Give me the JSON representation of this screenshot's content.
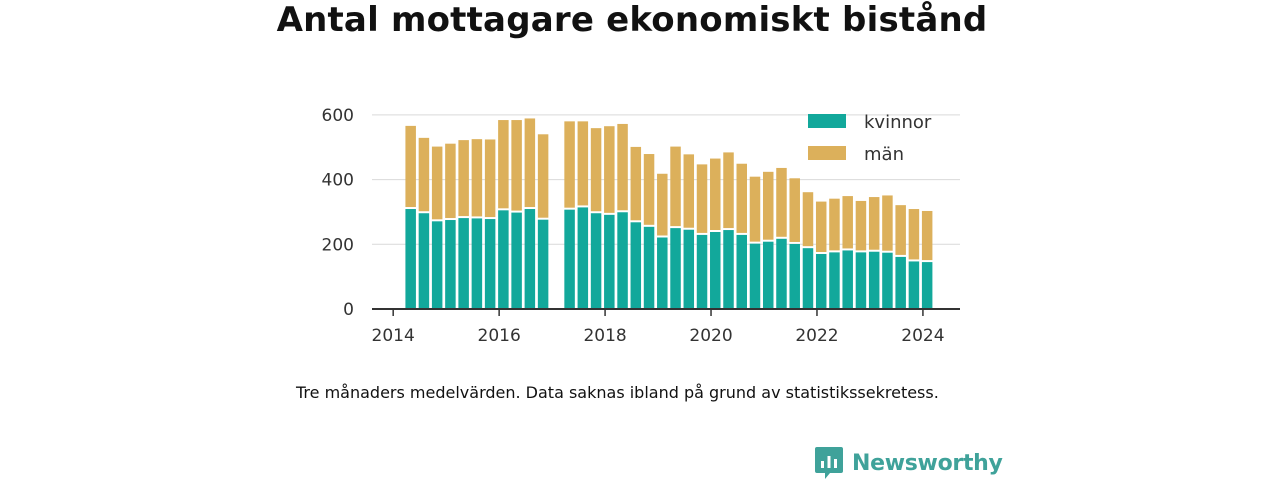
{
  "chart_data": {
    "type": "bar",
    "stacked": true,
    "title": "Antal mottagare ekonomiskt bistånd",
    "note": "Tre månaders medelvärden. Data saknas ibland på grund av statistikssekretess.",
    "xlim": [
      2013.6,
      2024.7
    ],
    "ylim": [
      0,
      620
    ],
    "xticks": [
      2014,
      2016,
      2018,
      2020,
      2022,
      2024
    ],
    "yticks": [
      0,
      200,
      400,
      600
    ],
    "grid": true,
    "legend_position": "top-right",
    "x": [
      2014.33,
      2014.58,
      2014.83,
      2015.08,
      2015.33,
      2015.58,
      2015.83,
      2016.08,
      2016.33,
      2016.58,
      2016.83,
      2017.33,
      2017.58,
      2017.83,
      2018.08,
      2018.33,
      2018.58,
      2018.83,
      2019.08,
      2019.33,
      2019.58,
      2019.83,
      2020.08,
      2020.33,
      2020.58,
      2020.83,
      2021.08,
      2021.33,
      2021.58,
      2021.83,
      2022.08,
      2022.33,
      2022.58,
      2022.83,
      2023.08,
      2023.33,
      2023.58,
      2023.83,
      2024.08
    ],
    "series": [
      {
        "name": "kvinnor",
        "color": "#12a89b",
        "values": [
          309,
          296,
          271,
          275,
          281,
          280,
          278,
          305,
          298,
          309,
          276,
          307,
          314,
          296,
          291,
          299,
          268,
          254,
          221,
          250,
          245,
          229,
          238,
          244,
          229,
          202,
          208,
          217,
          201,
          188,
          170,
          175,
          181,
          175,
          177,
          174,
          161,
          147,
          145
        ]
      },
      {
        "name": "män",
        "color": "#dcb05b",
        "values": [
          257,
          233,
          231,
          236,
          241,
          245,
          246,
          279,
          286,
          280,
          264,
          273,
          266,
          263,
          274,
          273,
          233,
          225,
          197,
          252,
          233,
          218,
          227,
          240,
          220,
          207,
          216,
          219,
          203,
          173,
          162,
          166,
          168,
          159,
          169,
          177,
          160,
          162,
          158
        ]
      }
    ]
  },
  "brand": {
    "name": "Newsworthy",
    "icon": "bar-chart-speech-bubble-icon",
    "color": "#3fa29a"
  }
}
